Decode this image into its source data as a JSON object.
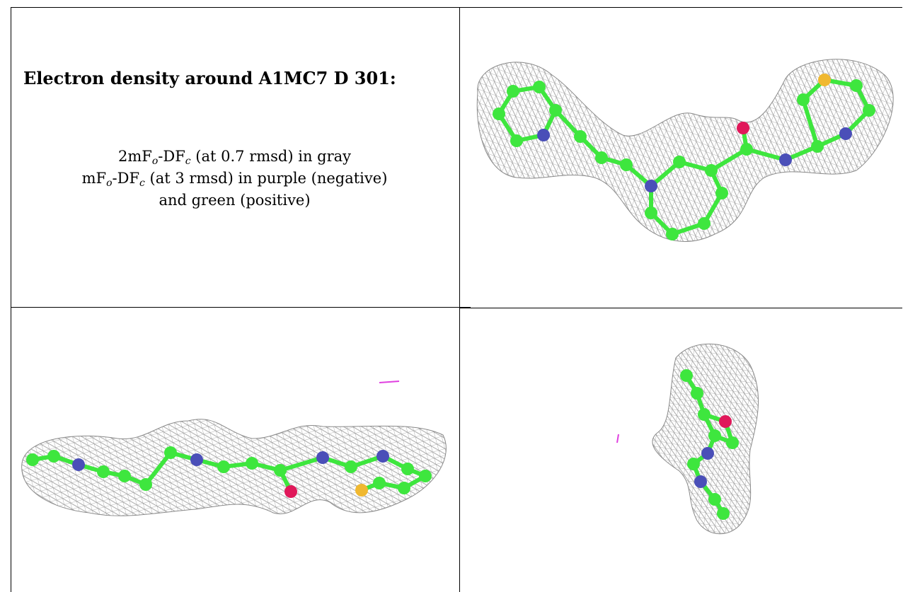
{
  "title": "Electron density around A1MC7 D 301:",
  "legend": {
    "line1": {
      "prefix": "2mF",
      "sub1": "o",
      "mid": "-DF",
      "sub2": "c",
      "suffix": " (at 0.7 rmsd) in gray"
    },
    "line2": {
      "prefix": "mF",
      "sub1": "o",
      "mid": "-DF",
      "sub2": "c",
      "suffix": " (at 3 rmsd) in purple (negative)"
    },
    "line3": "and green (positive)"
  },
  "colors": {
    "mesh": "#9a9a9a",
    "carbon": "#3ee63e",
    "nitrogen": "#4a4fb8",
    "oxygen": "#e0185a",
    "sulfur": "#f0b830",
    "negative": "#e040e0"
  },
  "views": [
    {
      "name": "top-view",
      "description": ""
    },
    {
      "name": "side-view",
      "description": ""
    },
    {
      "name": "end-view",
      "description": ""
    }
  ]
}
